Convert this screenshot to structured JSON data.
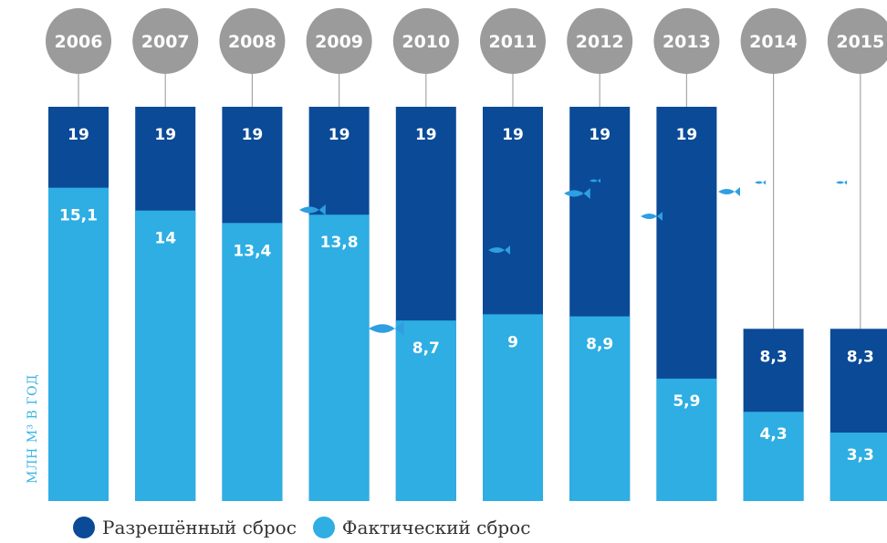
{
  "colors": {
    "allowed": "#0a4a97",
    "actual": "#2eaee3",
    "year_circle": "#9b9b9b",
    "connector": "#a6a6a6",
    "fish": "#2e9fe0"
  },
  "chart_data": {
    "type": "bar",
    "categories": [
      "2006",
      "2007",
      "2008",
      "2009",
      "2010",
      "2011",
      "2012",
      "2013",
      "2014",
      "2015"
    ],
    "series": [
      {
        "name": "Разрешённый сброс",
        "values": [
          19,
          19,
          19,
          19,
          19,
          19,
          19,
          19,
          8.3,
          8.3
        ],
        "labels": [
          "19",
          "19",
          "19",
          "19",
          "19",
          "19",
          "19",
          "19",
          "8,3",
          "8,3"
        ]
      },
      {
        "name": "Фактический сброс",
        "values": [
          15.1,
          14,
          13.4,
          13.8,
          8.7,
          9,
          8.9,
          5.9,
          4.3,
          3.3
        ],
        "labels": [
          "15,1",
          "14",
          "13,4",
          "13,8",
          "8,7",
          "9",
          "8,9",
          "5,9",
          "4,3",
          "3,3"
        ]
      }
    ],
    "ylabel": "МЛН М³ В ГОД",
    "ylim": [
      0,
      19
    ],
    "grid": false,
    "legend_position": "bottom-left",
    "overlay": true
  },
  "legend": {
    "allowed_label": "Разрешённый сброс",
    "actual_label": "Фактический сброс"
  }
}
